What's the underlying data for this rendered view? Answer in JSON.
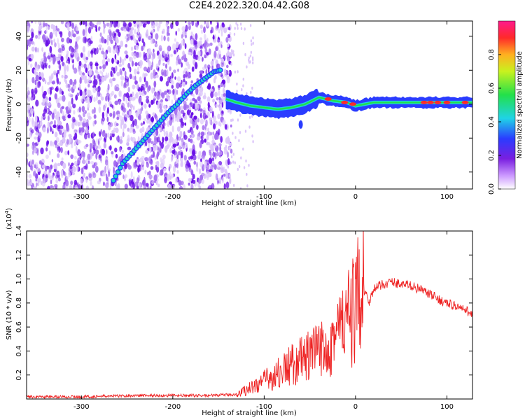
{
  "title": "C2E4.2022.320.04.42.G08",
  "chart_data": [
    {
      "type": "heatmap",
      "xlabel": "Height of straight line (km)",
      "ylabel": "Frequency (Hz)",
      "xlim": [
        -360,
        128
      ],
      "ylim": [
        -50,
        49
      ],
      "xticks": [
        -300,
        -200,
        -100,
        0,
        100
      ],
      "yticks": [
        -40,
        -20,
        0,
        20,
        40
      ],
      "colorbar": {
        "label": "Normalized spectral amplitude",
        "range": [
          0.0,
          1.0
        ],
        "ticks": [
          0.0,
          0.2,
          0.4,
          0.6,
          0.8
        ]
      },
      "tone": [
        {
          "x": -265,
          "y": -45
        },
        {
          "x": -255,
          "y": -35
        },
        {
          "x": -245,
          "y": -29
        },
        {
          "x": -235,
          "y": -23
        },
        {
          "x": -225,
          "y": -17
        },
        {
          "x": -215,
          "y": -11
        },
        {
          "x": -205,
          "y": -5
        },
        {
          "x": -195,
          "y": 0
        },
        {
          "x": -185,
          "y": 6
        },
        {
          "x": -175,
          "y": 11
        },
        {
          "x": -165,
          "y": 15
        },
        {
          "x": -155,
          "y": 19
        },
        {
          "x": -148,
          "y": 20
        }
      ],
      "carrier_band": [
        {
          "x": -142,
          "y": 3
        },
        {
          "x": -130,
          "y": 1
        },
        {
          "x": -115,
          "y": -1
        },
        {
          "x": -100,
          "y": -2
        },
        {
          "x": -85,
          "y": -3
        },
        {
          "x": -70,
          "y": -2
        },
        {
          "x": -55,
          "y": 0
        },
        {
          "x": -40,
          "y": 4
        },
        {
          "x": -25,
          "y": 2
        },
        {
          "x": -10,
          "y": 1
        },
        {
          "x": 0,
          "y": -1
        },
        {
          "x": 20,
          "y": 1
        },
        {
          "x": 60,
          "y": 1
        },
        {
          "x": 100,
          "y": 1
        },
        {
          "x": 128,
          "y": 1
        }
      ]
    },
    {
      "type": "line",
      "xlabel": "Height of straight line (km)",
      "ylabel": "SNR (10 * v/v)",
      "y_multiplier": "(x10",
      "y_multiplier_exp": "4",
      "y_multiplier_close": ")",
      "xlim": [
        -360,
        128
      ],
      "ylim": [
        0,
        1.4
      ],
      "xticks": [
        -300,
        -200,
        -100,
        0,
        100
      ],
      "yticks": [
        0.2,
        0.4,
        0.6,
        0.8,
        1.0,
        1.2,
        1.4
      ],
      "color": "#ee2222",
      "series": [
        {
          "x": [
            -360,
            -300,
            -240,
            -200,
            -160,
            -130,
            -110,
            -90,
            -70,
            -50,
            -40,
            -30,
            -20,
            -10,
            -5,
            0,
            5,
            8,
            10,
            15,
            20,
            30,
            40,
            50,
            60,
            70,
            80,
            90,
            100,
            110,
            120,
            128
          ],
          "values": [
            0.02,
            0.02,
            0.03,
            0.03,
            0.03,
            0.04,
            0.12,
            0.2,
            0.3,
            0.38,
            0.42,
            0.5,
            0.6,
            0.68,
            0.74,
            0.8,
            0.95,
            1.4,
            0.9,
            0.82,
            0.92,
            0.96,
            0.98,
            0.96,
            0.95,
            0.92,
            0.88,
            0.84,
            0.8,
            0.78,
            0.74,
            0.72
          ]
        }
      ]
    }
  ],
  "colors": {
    "line": "#ee2222",
    "noise": "#7a1fe0",
    "tone_fill": "#1fd3c9",
    "tone_edge": "#2a3cff"
  }
}
